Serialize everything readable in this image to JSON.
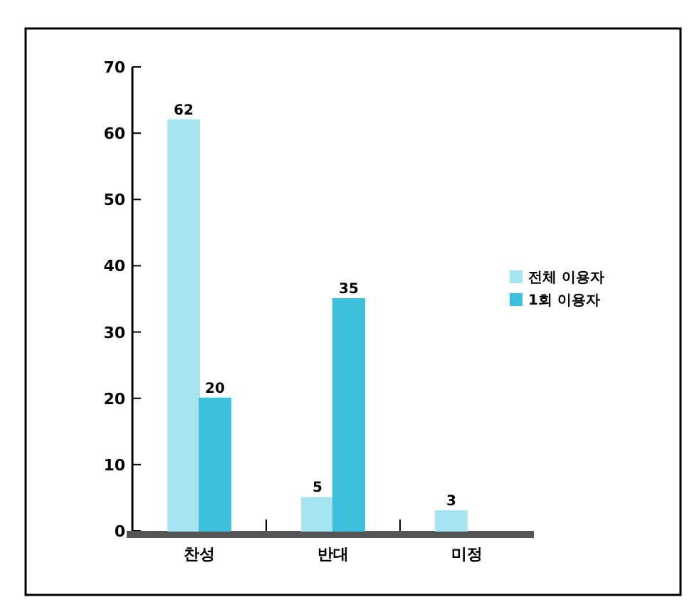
{
  "chart_data": {
    "type": "bar",
    "categories": [
      "찬성",
      "반대",
      "미정"
    ],
    "series": [
      {
        "name": "전체 이용자",
        "color": "#a6e4f2",
        "values": [
          62,
          5,
          3
        ]
      },
      {
        "name": "1회 이용자",
        "color": "#3cc0de",
        "values": [
          20,
          35,
          null
        ]
      }
    ],
    "ylim": [
      0,
      70
    ],
    "yticks": [
      0,
      10,
      20,
      30,
      40,
      50,
      60,
      70
    ],
    "data_labels": true,
    "legend": "right"
  }
}
